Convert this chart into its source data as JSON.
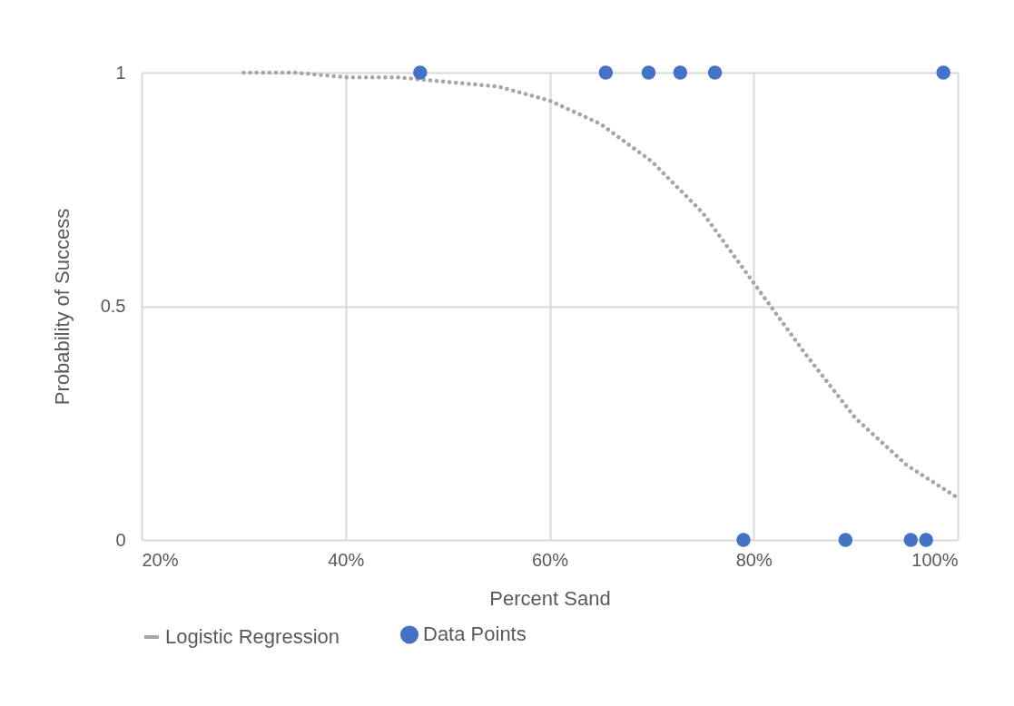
{
  "chart_data": {
    "type": "scatter",
    "xlabel": "Percent Sand",
    "ylabel": "Probability of Success",
    "xlim": [
      20,
      100
    ],
    "xticks": [
      {
        "value": 20,
        "label": "20%"
      },
      {
        "value": 40,
        "label": "40%"
      },
      {
        "value": 60,
        "label": "60%"
      },
      {
        "value": 80,
        "label": "80%"
      },
      {
        "value": 100,
        "label": "100%"
      }
    ],
    "ylim": [
      0,
      1
    ],
    "yticks": [
      0,
      0.5,
      1
    ],
    "grid": true,
    "legend": "bottom",
    "series": [
      {
        "name": "Logistic Regression",
        "type": "line",
        "line_style": "dotted",
        "color": "#a6a6a6",
        "x": [
          30,
          35,
          40,
          45,
          50,
          55,
          60,
          65,
          70,
          75,
          80,
          85,
          90,
          95,
          100
        ],
        "values": [
          1.0,
          1.0,
          0.99,
          0.99,
          0.98,
          0.97,
          0.94,
          0.89,
          0.81,
          0.7,
          0.55,
          0.4,
          0.26,
          0.16,
          0.09
        ]
      },
      {
        "name": "Data Points",
        "marker": "circle",
        "color": "#4472c4",
        "x": [
          47.3,
          65.5,
          69.7,
          72.8,
          76.2,
          98.6,
          79,
          89,
          95.4,
          96.9
        ],
        "values": [
          1,
          1,
          1,
          1,
          1,
          1,
          0,
          0,
          0,
          0
        ]
      }
    ]
  }
}
